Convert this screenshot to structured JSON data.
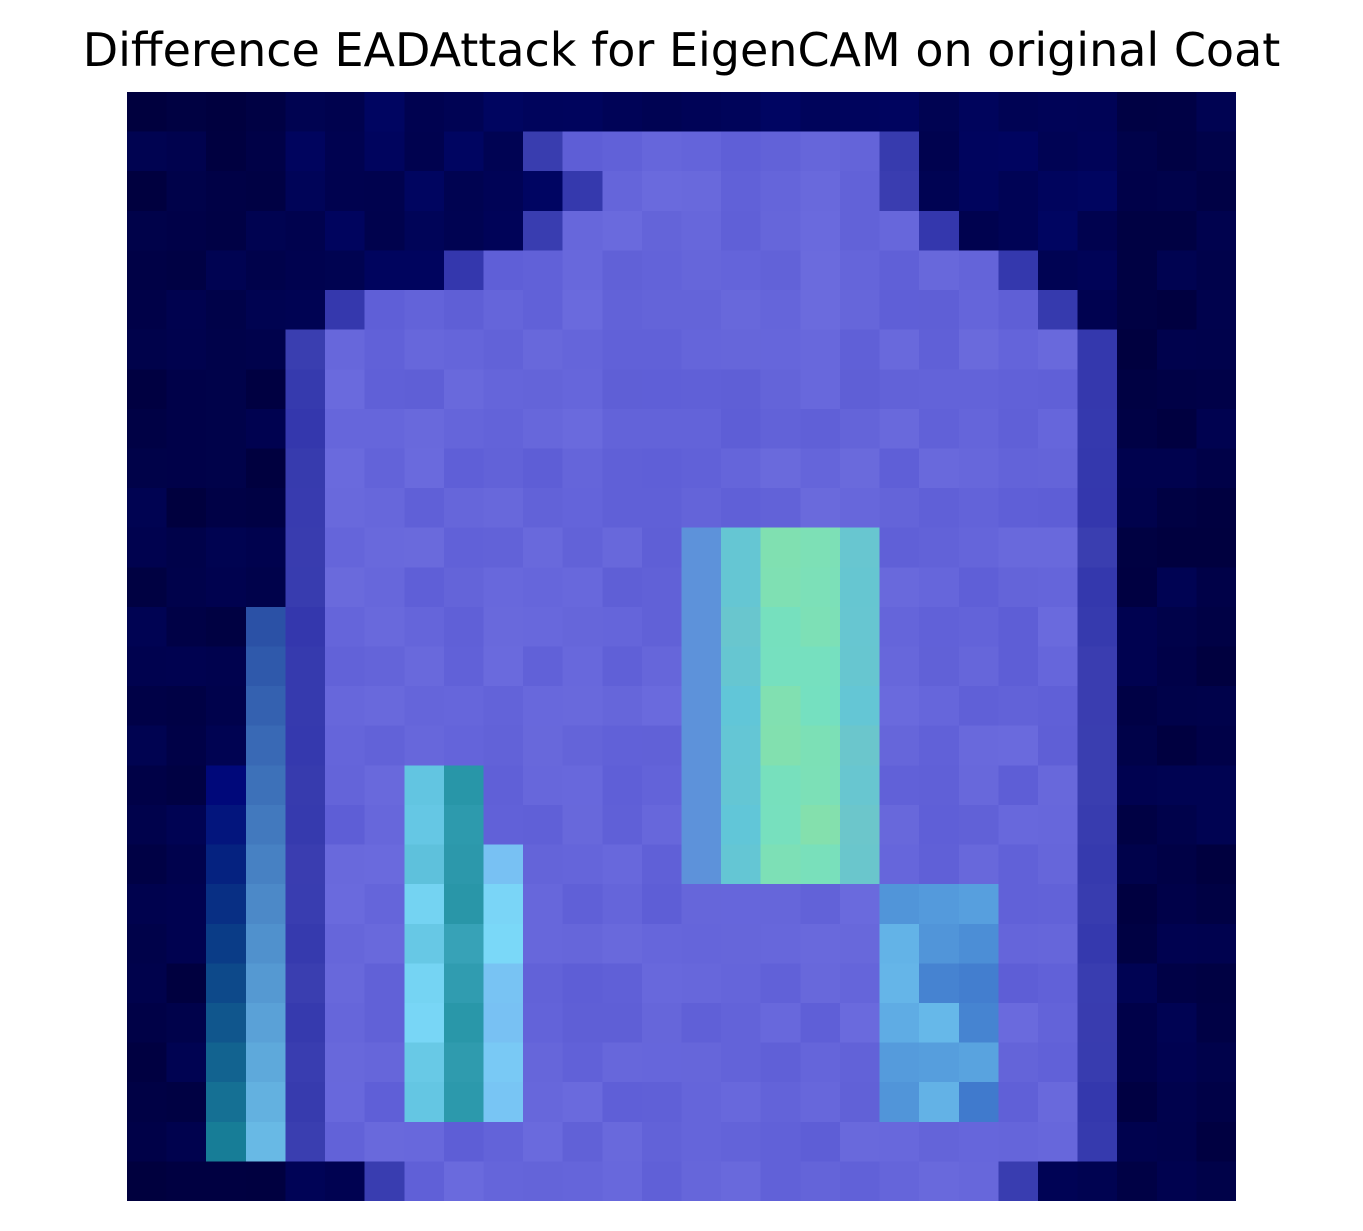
{
  "title": "Difference EADAttack for EigenCAM on original Coat",
  "image": {
    "kind": "overlay-heatmap",
    "description_name": "coat-attribution-heatmap",
    "grid_rows": 28,
    "grid_cols": 28,
    "colors": {
      "background_dark": "#000046",
      "edge_navy": "#00087a",
      "body_purple": "#6060d8",
      "highlight_cyan": "#5ce0e0",
      "highlight_green": "#8ee0a0",
      "highlight_teal": "#1a8a9a",
      "highlight_sky": "#7ad8f8"
    }
  }
}
